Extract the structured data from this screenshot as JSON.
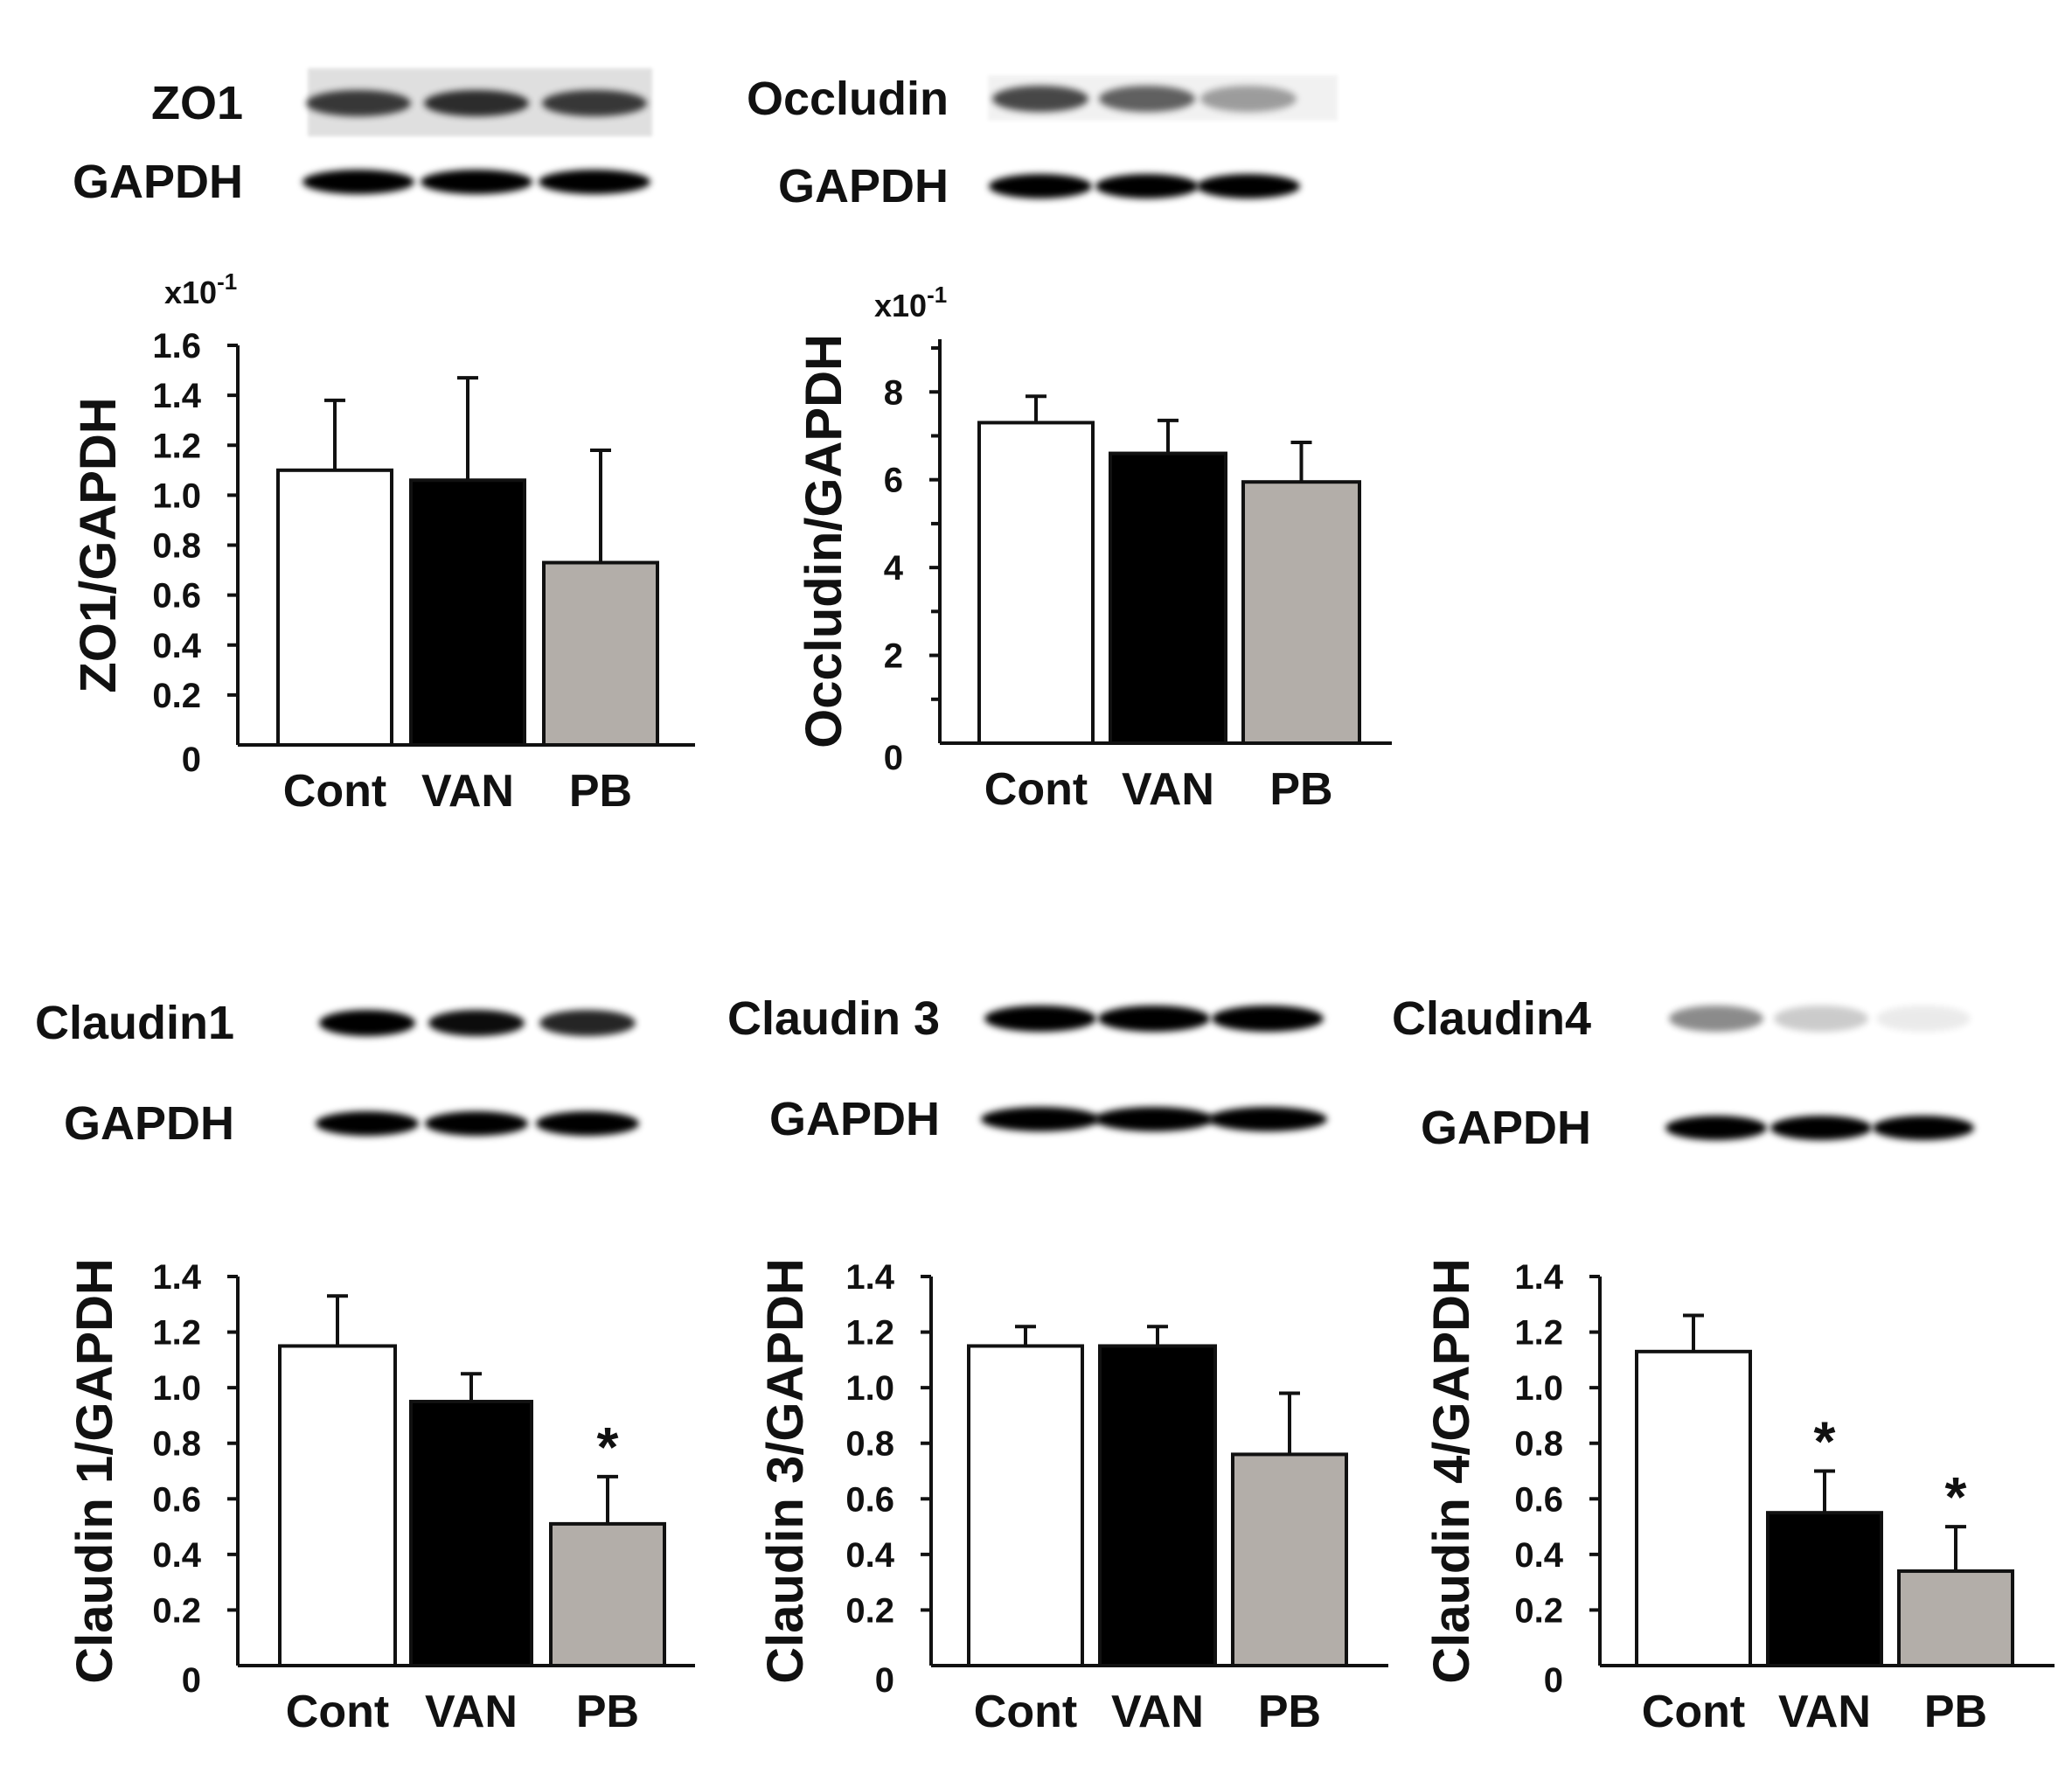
{
  "colors": {
    "Cont": "#ffffff",
    "VAN": "#000000",
    "PB": "#b3aea9",
    "axis": "#111111"
  },
  "blots": [
    {
      "id": "zo1",
      "target_label": "ZO1",
      "control_label": "GAPDH",
      "target_intensity": [
        0.75,
        0.8,
        0.75
      ],
      "target_background": 0.12,
      "control_intensity": [
        1,
        1,
        1
      ]
    },
    {
      "id": "occludin",
      "target_label": "Occludin",
      "control_label": "GAPDH",
      "target_intensity": [
        0.7,
        0.6,
        0.35
      ],
      "target_background": 0.05,
      "control_intensity": [
        1,
        1,
        1
      ]
    },
    {
      "id": "claudin1",
      "target_label": "Claudin1",
      "control_label": "GAPDH",
      "target_intensity": [
        1,
        0.95,
        0.85
      ],
      "target_background": 0,
      "control_intensity": [
        1,
        1,
        1
      ]
    },
    {
      "id": "claudin3",
      "target_label": "Claudin 3",
      "control_label": "GAPDH",
      "target_intensity": [
        1,
        1,
        1
      ],
      "target_background": 0.03,
      "control_intensity": [
        1,
        1,
        1
      ]
    },
    {
      "id": "claudin4",
      "target_label": "Claudin4",
      "control_label": "GAPDH",
      "target_intensity": [
        0.45,
        0.2,
        0.08
      ],
      "target_background": 0,
      "control_intensity": [
        1,
        1,
        1
      ]
    }
  ],
  "chart_data": [
    {
      "type": "bar",
      "id": "zo1",
      "title": "",
      "xlabel": "",
      "ylabel": "ZO1/GAPDH",
      "multiplier": "x10",
      "multiplier_exp": "-1",
      "categories": [
        "Cont",
        "VAN",
        "PB"
      ],
      "values": [
        1.1,
        1.06,
        0.73
      ],
      "errors": [
        0.28,
        0.41,
        0.45
      ],
      "significance": [
        "",
        "",
        ""
      ],
      "ylim": [
        0,
        1.6
      ],
      "yticks": [
        "0",
        "0.2",
        "0.4",
        "0.6",
        "0.8",
        "1.0",
        "1.2",
        "1.4",
        "1.6"
      ],
      "grid": false
    },
    {
      "type": "bar",
      "id": "occludin",
      "title": "",
      "xlabel": "",
      "ylabel": "Occludin/GAPDH",
      "multiplier": "x10",
      "multiplier_exp": "-1",
      "categories": [
        "Cont",
        "VAN",
        "PB"
      ],
      "values": [
        7.3,
        6.6,
        5.95
      ],
      "errors": [
        0.6,
        0.75,
        0.9
      ],
      "significance": [
        "",
        "",
        ""
      ],
      "ylim": [
        0,
        9.2
      ],
      "yticks": [
        "0",
        "2",
        "4",
        "6",
        "8"
      ],
      "grid": false
    },
    {
      "type": "bar",
      "id": "claudin1",
      "title": "",
      "xlabel": "",
      "ylabel": "Claudin 1/GAPDH",
      "multiplier": "",
      "multiplier_exp": "",
      "categories": [
        "Cont",
        "VAN",
        "PB"
      ],
      "values": [
        1.15,
        0.95,
        0.51
      ],
      "errors": [
        0.18,
        0.1,
        0.17
      ],
      "significance": [
        "",
        "",
        "*"
      ],
      "ylim": [
        0,
        1.4
      ],
      "yticks": [
        "0",
        "0.2",
        "0.4",
        "0.6",
        "0.8",
        "1.0",
        "1.2",
        "1.4"
      ],
      "grid": false
    },
    {
      "type": "bar",
      "id": "claudin3",
      "title": "",
      "xlabel": "",
      "ylabel": "Claudin 3/GAPDH",
      "multiplier": "",
      "multiplier_exp": "",
      "categories": [
        "Cont",
        "VAN",
        "PB"
      ],
      "values": [
        1.15,
        1.15,
        0.76
      ],
      "errors": [
        0.07,
        0.07,
        0.22
      ],
      "significance": [
        "",
        "",
        ""
      ],
      "ylim": [
        0,
        1.4
      ],
      "yticks": [
        "0",
        "0.2",
        "0.4",
        "0.6",
        "0.8",
        "1.0",
        "1.2",
        "1.4"
      ],
      "grid": false
    },
    {
      "type": "bar",
      "id": "claudin4",
      "title": "",
      "xlabel": "",
      "ylabel": "Claudin 4/GAPDH",
      "multiplier": "",
      "multiplier_exp": "",
      "categories": [
        "Cont",
        "VAN",
        "PB"
      ],
      "values": [
        1.13,
        0.55,
        0.34
      ],
      "errors": [
        0.13,
        0.15,
        0.16
      ],
      "significance": [
        "",
        "*",
        "*"
      ],
      "ylim": [
        0,
        1.4
      ],
      "yticks": [
        "0",
        "0.2",
        "0.4",
        "0.6",
        "0.8",
        "1.0",
        "1.2",
        "1.4"
      ],
      "grid": false
    }
  ]
}
